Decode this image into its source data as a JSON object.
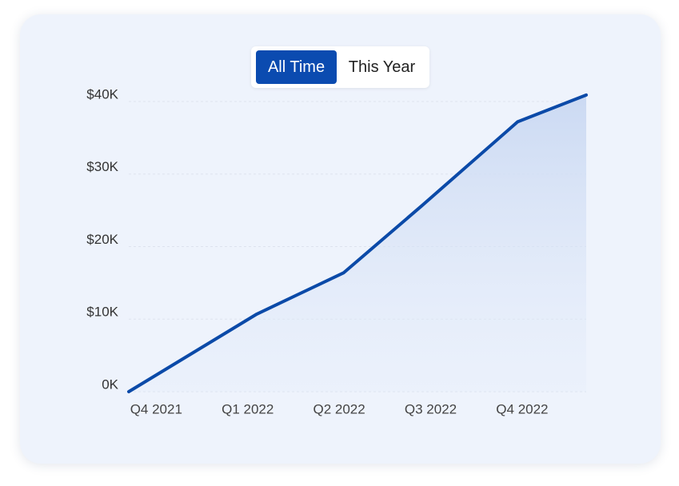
{
  "toggle": {
    "options": [
      "All Time",
      "This Year"
    ],
    "selected": 0
  },
  "chart_data": {
    "type": "area",
    "x": [
      -0.3,
      1.1,
      2.05,
      2.9,
      3.95,
      4.7
    ],
    "values": [
      0,
      10.7,
      16.4,
      25.6,
      37.2,
      40.9
    ],
    "color": "#0b4aa8",
    "xlim": [
      -0.3,
      4.7
    ],
    "xticks": [
      {
        "value": 0,
        "label": "Q4 2021"
      },
      {
        "value": 1,
        "label": "Q1 2022"
      },
      {
        "value": 2,
        "label": "Q2 2022"
      },
      {
        "value": 3,
        "label": "Q3 2022"
      },
      {
        "value": 4,
        "label": "Q4 2022"
      }
    ],
    "ylim": [
      0,
      40
    ],
    "yticks": [
      {
        "value": 0,
        "label": "0K"
      },
      {
        "value": 10,
        "label": "$10K"
      },
      {
        "value": 20,
        "label": "$20K"
      },
      {
        "value": 30,
        "label": "$30K"
      },
      {
        "value": 40,
        "label": "$40K"
      }
    ],
    "grid": true
  }
}
